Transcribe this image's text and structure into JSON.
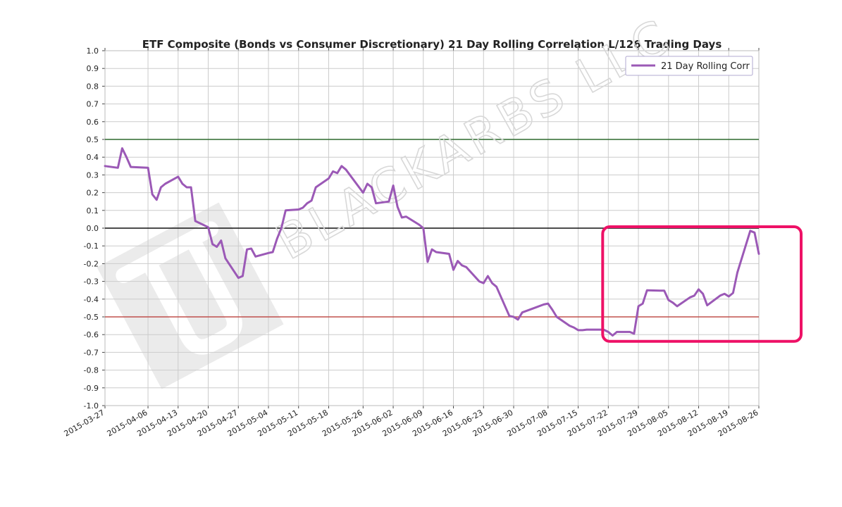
{
  "chart_data": {
    "type": "line",
    "title": "ETF Composite (Bonds vs Consumer Discretionary) 21 Day Rolling Correlation L/126 Trading Days",
    "xlabel": "",
    "ylabel": "",
    "x_range": [
      "2015-03-27",
      "2015-08-26"
    ],
    "ylim": [
      -1.0,
      1.0
    ],
    "yticks": [
      "1.0",
      "0.9",
      "0.8",
      "0.7",
      "0.6",
      "0.5",
      "0.4",
      "0.3",
      "0.2",
      "0.1",
      "0.0",
      "-0.1",
      "-0.2",
      "-0.3",
      "-0.4",
      "-0.5",
      "-0.6",
      "-0.7",
      "-0.8",
      "-0.9",
      "-1.0"
    ],
    "xticks": [
      "2015-03-27",
      "2015-04-06",
      "2015-04-13",
      "2015-04-20",
      "2015-04-27",
      "2015-05-04",
      "2015-05-11",
      "2015-05-18",
      "2015-05-26",
      "2015-06-02",
      "2015-06-09",
      "2015-06-16",
      "2015-06-23",
      "2015-06-30",
      "2015-07-08",
      "2015-07-15",
      "2015-07-22",
      "2015-07-29",
      "2015-08-05",
      "2015-08-12",
      "2015-08-19",
      "2015-08-26"
    ],
    "grid": true,
    "legend_position": "top-right",
    "reference_lines": [
      {
        "y": 0.5,
        "color": "#2d6a2d"
      },
      {
        "y": 0.0,
        "color": "#111111"
      },
      {
        "y": -0.5,
        "color": "#c0504d"
      }
    ],
    "highlight_box": {
      "x_start": "2015-07-22",
      "x_end": "2015-08-26",
      "y_top": 0.0,
      "y_bottom": -0.63,
      "color": "#ee1166"
    },
    "watermark_text": "BLACKARBS LLC",
    "series": [
      {
        "name": "21 Day Rolling Corr",
        "color": "#9b59b6",
        "points": [
          [
            "2015-03-27",
            0.35
          ],
          [
            "2015-03-30",
            0.34
          ],
          [
            "2015-03-31",
            0.45
          ],
          [
            "2015-04-01",
            0.4
          ],
          [
            "2015-04-02",
            0.345
          ],
          [
            "2015-04-06",
            0.34
          ],
          [
            "2015-04-07",
            0.19
          ],
          [
            "2015-04-08",
            0.16
          ],
          [
            "2015-04-09",
            0.23
          ],
          [
            "2015-04-10",
            0.25
          ],
          [
            "2015-04-13",
            0.29
          ],
          [
            "2015-04-14",
            0.25
          ],
          [
            "2015-04-15",
            0.23
          ],
          [
            "2015-04-16",
            0.23
          ],
          [
            "2015-04-17",
            0.04
          ],
          [
            "2015-04-20",
            0.005
          ],
          [
            "2015-04-21",
            -0.09
          ],
          [
            "2015-04-22",
            -0.105
          ],
          [
            "2015-04-23",
            -0.07
          ],
          [
            "2015-04-24",
            -0.17
          ],
          [
            "2015-04-27",
            -0.28
          ],
          [
            "2015-04-28",
            -0.27
          ],
          [
            "2015-04-29",
            -0.12
          ],
          [
            "2015-04-30",
            -0.115
          ],
          [
            "2015-05-01",
            -0.16
          ],
          [
            "2015-05-04",
            -0.14
          ],
          [
            "2015-05-05",
            -0.135
          ],
          [
            "2015-05-06",
            -0.06
          ],
          [
            "2015-05-07",
            0.0
          ],
          [
            "2015-05-08",
            0.1
          ],
          [
            "2015-05-11",
            0.105
          ],
          [
            "2015-05-12",
            0.115
          ],
          [
            "2015-05-13",
            0.14
          ],
          [
            "2015-05-14",
            0.155
          ],
          [
            "2015-05-15",
            0.23
          ],
          [
            "2015-05-18",
            0.28
          ],
          [
            "2015-05-19",
            0.32
          ],
          [
            "2015-05-20",
            0.31
          ],
          [
            "2015-05-21",
            0.35
          ],
          [
            "2015-05-22",
            0.33
          ],
          [
            "2015-05-26",
            0.2
          ],
          [
            "2015-05-27",
            0.25
          ],
          [
            "2015-05-28",
            0.23
          ],
          [
            "2015-05-29",
            0.14
          ],
          [
            "2015-06-01",
            0.15
          ],
          [
            "2015-06-02",
            0.24
          ],
          [
            "2015-06-03",
            0.12
          ],
          [
            "2015-06-04",
            0.06
          ],
          [
            "2015-06-05",
            0.065
          ],
          [
            "2015-06-08",
            0.02
          ],
          [
            "2015-06-09",
            0.0
          ],
          [
            "2015-06-10",
            -0.19
          ],
          [
            "2015-06-11",
            -0.12
          ],
          [
            "2015-06-12",
            -0.135
          ],
          [
            "2015-06-15",
            -0.145
          ],
          [
            "2015-06-16",
            -0.235
          ],
          [
            "2015-06-17",
            -0.185
          ],
          [
            "2015-06-18",
            -0.21
          ],
          [
            "2015-06-19",
            -0.22
          ],
          [
            "2015-06-22",
            -0.3
          ],
          [
            "2015-06-23",
            -0.31
          ],
          [
            "2015-06-24",
            -0.27
          ],
          [
            "2015-06-25",
            -0.31
          ],
          [
            "2015-06-26",
            -0.33
          ],
          [
            "2015-06-29",
            -0.495
          ],
          [
            "2015-06-30",
            -0.5
          ],
          [
            "2015-07-01",
            -0.515
          ],
          [
            "2015-07-02",
            -0.475
          ],
          [
            "2015-07-07",
            -0.43
          ],
          [
            "2015-07-08",
            -0.425
          ],
          [
            "2015-07-09",
            -0.46
          ],
          [
            "2015-07-10",
            -0.5
          ],
          [
            "2015-07-13",
            -0.55
          ],
          [
            "2015-07-14",
            -0.56
          ],
          [
            "2015-07-15",
            -0.575
          ],
          [
            "2015-07-16",
            -0.575
          ],
          [
            "2015-07-17",
            -0.572
          ],
          [
            "2015-07-20",
            -0.572
          ],
          [
            "2015-07-21",
            -0.573
          ],
          [
            "2015-07-22",
            -0.585
          ],
          [
            "2015-07-23",
            -0.605
          ],
          [
            "2015-07-24",
            -0.585
          ],
          [
            "2015-07-27",
            -0.585
          ],
          [
            "2015-07-28",
            -0.595
          ],
          [
            "2015-07-29",
            -0.44
          ],
          [
            "2015-07-30",
            -0.425
          ],
          [
            "2015-07-31",
            -0.35
          ],
          [
            "2015-08-03",
            -0.352
          ],
          [
            "2015-08-04",
            -0.352
          ],
          [
            "2015-08-05",
            -0.405
          ],
          [
            "2015-08-06",
            -0.42
          ],
          [
            "2015-08-07",
            -0.44
          ],
          [
            "2015-08-10",
            -0.39
          ],
          [
            "2015-08-11",
            -0.38
          ],
          [
            "2015-08-12",
            -0.345
          ],
          [
            "2015-08-13",
            -0.37
          ],
          [
            "2015-08-14",
            -0.435
          ],
          [
            "2015-08-17",
            -0.38
          ],
          [
            "2015-08-18",
            -0.37
          ],
          [
            "2015-08-19",
            -0.385
          ],
          [
            "2015-08-20",
            -0.365
          ],
          [
            "2015-08-21",
            -0.25
          ],
          [
            "2015-08-24",
            -0.015
          ],
          [
            "2015-08-25",
            -0.025
          ],
          [
            "2015-08-26",
            -0.145
          ]
        ]
      }
    ]
  }
}
